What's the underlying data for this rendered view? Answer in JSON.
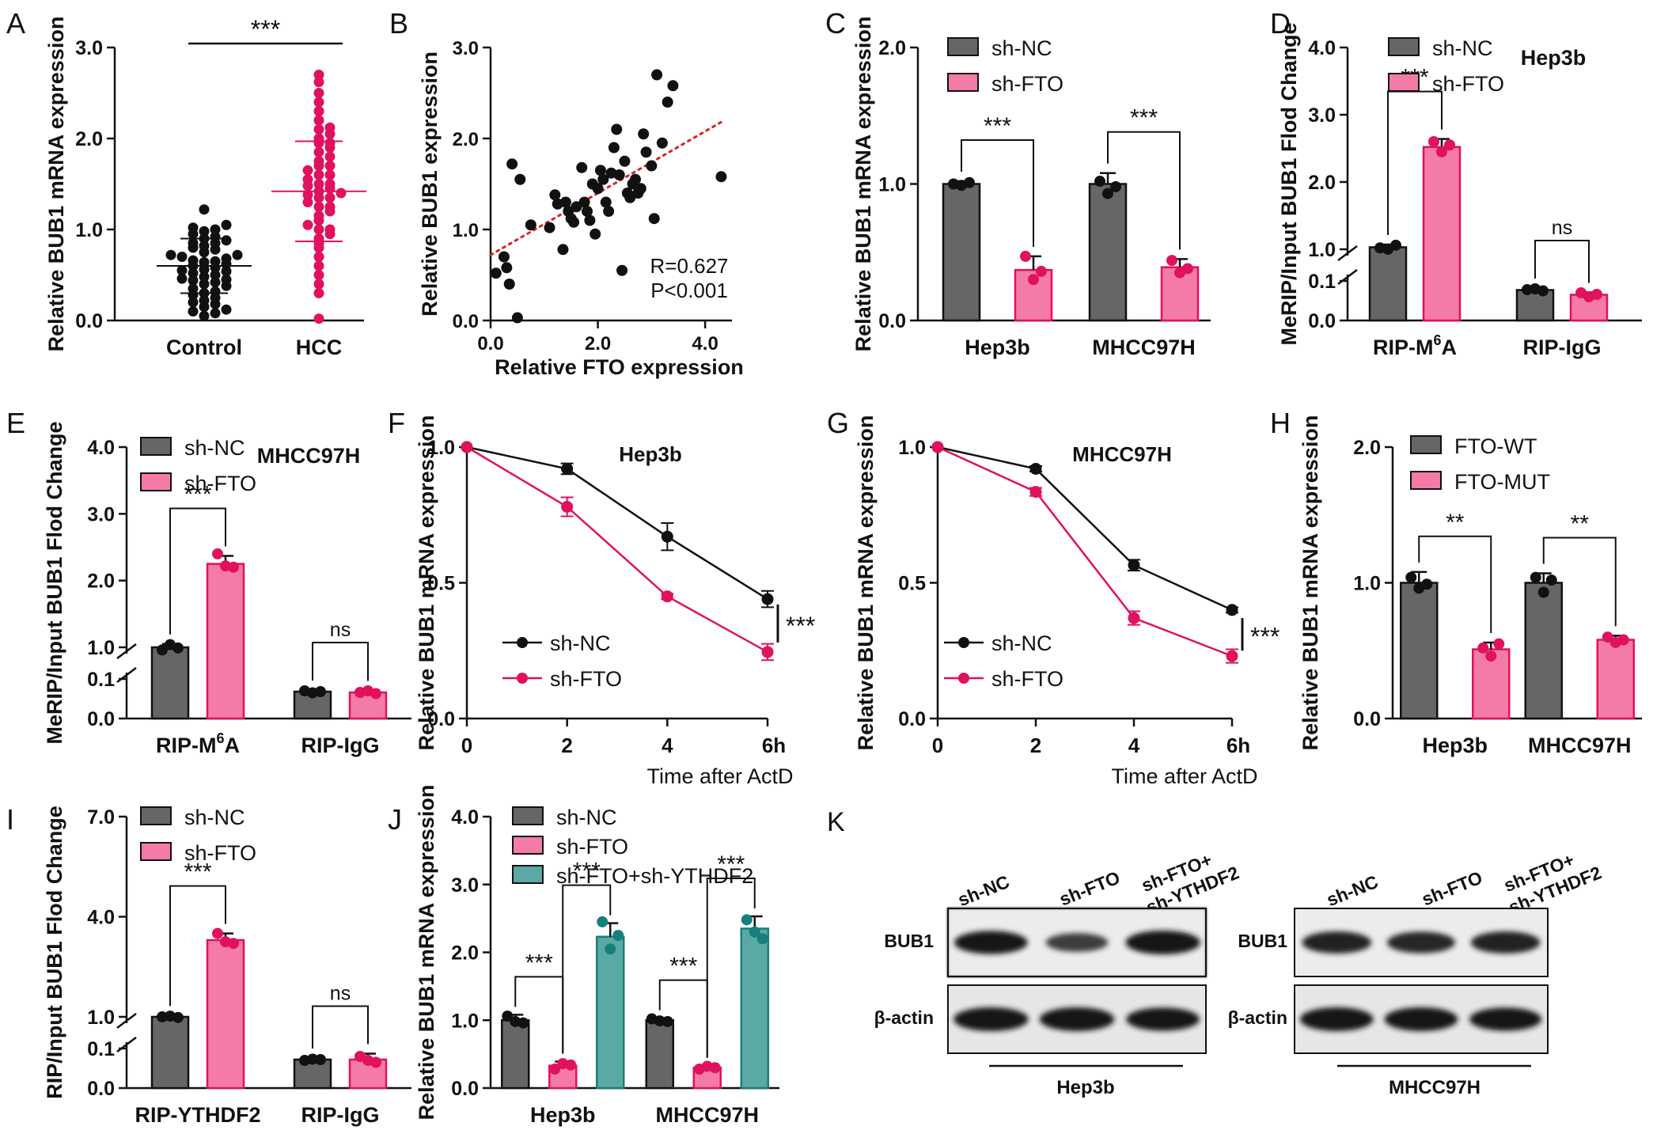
{
  "colors": {
    "gray": "#666666",
    "pink": "#f47aa8",
    "pink_dark": "#e0115f",
    "teal": "#5aa9a4",
    "teal_dark": "#177f7b",
    "black": "#111111"
  },
  "chart_data": [
    {
      "id": "A",
      "type": "scatter",
      "panel_label": "A",
      "ylabel": "Relative BUB1 mRNA expression",
      "ylim": [
        0,
        3.0
      ],
      "yticks": [
        0,
        1.0,
        2.0,
        3.0
      ],
      "ytick_labels": [
        "0.0",
        "1.0",
        "2.0",
        "3.0"
      ],
      "categories": [
        "Control",
        "HCC"
      ],
      "groups": [
        {
          "name": "Control",
          "color": "black",
          "mean": 0.6,
          "sd": 0.3,
          "values": [
            1.22,
            1.05,
            1.02,
            1.0,
            0.98,
            0.95,
            0.92,
            0.9,
            0.88,
            0.85,
            0.82,
            0.8,
            0.78,
            0.75,
            0.72,
            0.7,
            0.68,
            0.66,
            0.64,
            0.62,
            0.6,
            0.58,
            0.56,
            0.54,
            0.52,
            0.5,
            0.48,
            0.46,
            0.44,
            0.42,
            0.4,
            0.38,
            0.35,
            0.32,
            0.3,
            0.28,
            0.25,
            0.22,
            0.2,
            0.18,
            0.15,
            0.12,
            0.1,
            0.08,
            0.05,
            0.65,
            0.72,
            0.55,
            0.45,
            0.85
          ]
        },
        {
          "name": "HCC",
          "color": "pink_dark",
          "mean": 1.42,
          "sd": 0.55,
          "values": [
            2.7,
            2.62,
            2.5,
            2.4,
            2.3,
            2.2,
            2.12,
            2.05,
            2.0,
            1.95,
            1.9,
            1.85,
            1.8,
            1.75,
            1.7,
            1.65,
            1.6,
            1.55,
            1.5,
            1.48,
            1.45,
            1.42,
            1.4,
            1.38,
            1.35,
            1.3,
            1.25,
            1.2,
            1.15,
            1.1,
            1.05,
            1.0,
            0.95,
            0.9,
            0.85,
            0.8,
            0.7,
            0.6,
            0.5,
            0.4,
            0.3,
            0.02,
            1.6,
            1.7,
            1.5,
            1.25,
            1.35,
            1.0,
            1.95,
            2.1
          ]
        }
      ],
      "sig": [
        {
          "from": 0,
          "to": 1,
          "label": "***"
        }
      ]
    },
    {
      "id": "B",
      "type": "scatter",
      "panel_label": "B",
      "xlabel": "Relative FTO expression",
      "ylabel": "Relative BUB1 expression",
      "xlim": [
        0,
        4.5
      ],
      "ylim": [
        0,
        3.0
      ],
      "xticks": [
        0,
        2.0,
        4.0
      ],
      "xtick_labels": [
        "0.0",
        "2.0",
        "4.0"
      ],
      "yticks": [
        0,
        1.0,
        2.0,
        3.0
      ],
      "ytick_labels": [
        "0.0",
        "1.0",
        "2.0",
        "3.0"
      ],
      "points": [
        [
          0.1,
          0.52
        ],
        [
          0.25,
          0.7
        ],
        [
          0.3,
          0.58
        ],
        [
          0.35,
          0.4
        ],
        [
          0.5,
          0.03
        ],
        [
          0.4,
          1.72
        ],
        [
          0.55,
          1.55
        ],
        [
          0.75,
          1.05
        ],
        [
          1.1,
          1.02
        ],
        [
          1.2,
          1.38
        ],
        [
          1.25,
          1.28
        ],
        [
          1.4,
          1.3
        ],
        [
          1.45,
          1.2
        ],
        [
          1.5,
          1.12
        ],
        [
          1.55,
          1.08
        ],
        [
          1.6,
          1.25
        ],
        [
          1.7,
          1.68
        ],
        [
          1.75,
          1.3
        ],
        [
          1.8,
          1.2
        ],
        [
          1.85,
          1.1
        ],
        [
          1.9,
          1.5
        ],
        [
          1.95,
          0.95
        ],
        [
          2.0,
          1.45
        ],
        [
          2.05,
          1.65
        ],
        [
          2.1,
          1.55
        ],
        [
          2.15,
          1.3
        ],
        [
          2.2,
          1.2
        ],
        [
          2.25,
          1.62
        ],
        [
          2.3,
          1.9
        ],
        [
          2.35,
          2.1
        ],
        [
          2.4,
          1.6
        ],
        [
          2.45,
          0.55
        ],
        [
          2.5,
          1.75
        ],
        [
          2.55,
          1.4
        ],
        [
          2.6,
          1.35
        ],
        [
          2.65,
          1.5
        ],
        [
          2.7,
          1.55
        ],
        [
          2.75,
          1.4
        ],
        [
          2.8,
          1.45
        ],
        [
          2.85,
          2.05
        ],
        [
          2.9,
          1.85
        ],
        [
          3.0,
          1.7
        ],
        [
          3.05,
          1.12
        ],
        [
          3.1,
          2.7
        ],
        [
          3.3,
          2.4
        ],
        [
          3.4,
          2.58
        ],
        [
          3.2,
          1.95
        ],
        [
          1.35,
          0.78
        ],
        [
          4.3,
          1.58
        ]
      ],
      "trend": {
        "x": [
          0,
          4.3
        ],
        "y": [
          0.72,
          2.18
        ]
      },
      "annotations": [
        "R=0.627",
        "P<0.001"
      ]
    },
    {
      "id": "C",
      "type": "bar",
      "panel_label": "C",
      "ylabel": "Relative BUB1 mRNA expression",
      "ylim": [
        0,
        2.0
      ],
      "yticks": [
        0,
        1.0,
        2.0
      ],
      "ytick_labels": [
        "0.0",
        "1.0",
        "2.0"
      ],
      "categories": [
        "Hep3b",
        "MHCC97H"
      ],
      "series": [
        {
          "name": "sh-NC",
          "color": "gray",
          "values": [
            1.0,
            1.0
          ],
          "errors": [
            0.02,
            0.08
          ],
          "points": [
            [
              1.0,
              0.99,
              1.01
            ],
            [
              1.02,
              0.93,
              0.98
            ]
          ]
        },
        {
          "name": "sh-FTO",
          "color": "pink",
          "values": [
            0.37,
            0.39
          ],
          "errors": [
            0.1,
            0.06
          ],
          "points": [
            [
              0.47,
              0.3,
              0.36
            ],
            [
              0.44,
              0.35,
              0.38
            ]
          ]
        }
      ],
      "sig": [
        {
          "cat": 0,
          "label": "***"
        },
        {
          "cat": 1,
          "label": "***"
        }
      ]
    },
    {
      "id": "D",
      "type": "bar",
      "panel_label": "D",
      "title": "Hep3b",
      "ylabel": "MeRIP/Input BUB1 Flod Change",
      "broken_axis": {
        "low": [
          0,
          0.1
        ],
        "high": [
          1.0,
          4.0
        ]
      },
      "ytick_labels": [
        "0.0",
        "0.1",
        "1.0",
        "2.0",
        "3.0",
        "4.0"
      ],
      "categories": [
        "RIP-M6A",
        "RIP-IgG"
      ],
      "series": [
        {
          "name": "sh-NC",
          "color": "gray",
          "values": [
            1.03,
            0.077
          ],
          "errors": [
            0.04,
            0.005
          ],
          "points": [
            [
              1.02,
              1.0,
              1.06
            ],
            [
              0.078,
              0.08,
              0.075
            ]
          ]
        },
        {
          "name": "sh-FTO",
          "color": "pink",
          "values": [
            2.52,
            0.065
          ],
          "errors": [
            0.12,
            0.006
          ],
          "points": [
            [
              2.6,
              2.45,
              2.55
            ],
            [
              0.07,
              0.06,
              0.066
            ]
          ]
        }
      ],
      "sig": [
        {
          "cat": 0,
          "label": "***"
        },
        {
          "cat": 1,
          "label": "ns"
        }
      ]
    },
    {
      "id": "E",
      "type": "bar",
      "panel_label": "E",
      "title": "MHCC97H",
      "ylabel": "MeRIP/Input BUB1 Flod Change",
      "broken_axis": {
        "low": [
          0,
          0.1
        ],
        "high": [
          1.0,
          4.0
        ]
      },
      "ytick_labels": [
        "0.0",
        "0.1",
        "1.0",
        "2.0",
        "3.0",
        "4.0"
      ],
      "categories": [
        "RIP-M6A",
        "RIP-IgG"
      ],
      "series": [
        {
          "name": "sh-NC",
          "color": "gray",
          "values": [
            1.0,
            0.068
          ],
          "errors": [
            0.05,
            0.004
          ],
          "points": [
            [
              0.96,
              1.04,
              0.99
            ],
            [
              0.07,
              0.065,
              0.068
            ]
          ]
        },
        {
          "name": "sh-FTO",
          "color": "pink",
          "values": [
            2.25,
            0.066
          ],
          "errors": [
            0.12,
            0.005
          ],
          "points": [
            [
              2.4,
              2.22,
              2.2
            ],
            [
              0.066,
              0.07,
              0.063
            ]
          ]
        }
      ],
      "sig": [
        {
          "cat": 0,
          "label": "***"
        },
        {
          "cat": 1,
          "label": "ns"
        }
      ]
    },
    {
      "id": "F",
      "type": "line",
      "panel_label": "F",
      "title": "Hep3b",
      "xlabel": "Time after ActD",
      "ylabel": "Relative BUB1 mRNA expression",
      "xlim": [
        0,
        6
      ],
      "ylim": [
        0,
        1.0
      ],
      "xticks": [
        0,
        2,
        4,
        6
      ],
      "xtick_labels": [
        "0",
        "2",
        "4",
        "6h"
      ],
      "yticks": [
        0,
        0.5,
        1.0
      ],
      "ytick_labels": [
        "0.0",
        "0.5",
        "1.0"
      ],
      "series": [
        {
          "name": "sh-NC",
          "color": "black",
          "x": [
            0,
            2,
            4,
            6
          ],
          "y": [
            1.0,
            0.92,
            0.67,
            0.44
          ],
          "errors": [
            0,
            0.02,
            0.05,
            0.03
          ]
        },
        {
          "name": "sh-FTO",
          "color": "pink_dark",
          "x": [
            0,
            2,
            4,
            6
          ],
          "y": [
            1.0,
            0.78,
            0.45,
            0.245
          ],
          "errors": [
            0,
            0.035,
            0.01,
            0.03
          ]
        }
      ],
      "sig": {
        "label": "***",
        "range": [
          0.28,
          0.42
        ]
      }
    },
    {
      "id": "G",
      "type": "line",
      "panel_label": "G",
      "title": "MHCC97H",
      "xlabel": "Time after ActD",
      "ylabel": "Relative BUB1 mRNA expression",
      "xlim": [
        0,
        6
      ],
      "ylim": [
        0,
        1.0
      ],
      "xticks": [
        0,
        2,
        4,
        6
      ],
      "xtick_labels": [
        "0",
        "2",
        "4",
        "6h"
      ],
      "yticks": [
        0,
        0.5,
        1.0
      ],
      "ytick_labels": [
        "0.0",
        "0.5",
        "1.0"
      ],
      "series": [
        {
          "name": "sh-NC",
          "color": "black",
          "x": [
            0,
            2,
            4,
            6
          ],
          "y": [
            1.0,
            0.92,
            0.565,
            0.4
          ],
          "errors": [
            0,
            0.01,
            0.02,
            0.01
          ]
        },
        {
          "name": "sh-FTO",
          "color": "pink_dark",
          "x": [
            0,
            2,
            4,
            6
          ],
          "y": [
            1.0,
            0.835,
            0.37,
            0.23
          ],
          "errors": [
            0,
            0.015,
            0.025,
            0.025
          ]
        }
      ],
      "sig": {
        "label": "***",
        "range": [
          0.25,
          0.37
        ]
      }
    },
    {
      "id": "H",
      "type": "bar",
      "panel_label": "H",
      "ylabel": "Relative BUB1 mRNA expression",
      "ylim": [
        0,
        2.0
      ],
      "yticks": [
        0,
        1.0,
        2.0
      ],
      "ytick_labels": [
        "0.0",
        "1.0",
        "2.0"
      ],
      "categories": [
        "Hep3b",
        "MHCC97H"
      ],
      "series": [
        {
          "name": "FTO-WT",
          "color": "gray",
          "values": [
            1.0,
            1.0
          ],
          "errors": [
            0.08,
            0.07
          ],
          "points": [
            [
              1.04,
              0.96,
              0.99
            ],
            [
              1.04,
              0.93,
              1.02
            ]
          ]
        },
        {
          "name": "FTO-MUT",
          "color": "pink",
          "values": [
            0.51,
            0.58
          ],
          "errors": [
            0.05,
            0.03
          ],
          "points": [
            [
              0.52,
              0.46,
              0.55
            ],
            [
              0.6,
              0.56,
              0.58
            ]
          ]
        }
      ],
      "sig": [
        {
          "cat": 0,
          "label": "**"
        },
        {
          "cat": 1,
          "label": "**"
        }
      ]
    },
    {
      "id": "I",
      "type": "bar",
      "panel_label": "I",
      "ylabel": "RIP/Input BUB1 Flod Change",
      "broken_axis": {
        "low": [
          0,
          0.1
        ],
        "high": [
          1.0,
          7.0
        ]
      },
      "ytick_labels": [
        "0.0",
        "0.1",
        "1.0",
        "4.0",
        "7.0"
      ],
      "high_ticks": [
        1.0,
        4.0,
        7.0
      ],
      "categories": [
        "RIP-YTHDF2",
        "RIP-IgG"
      ],
      "series": [
        {
          "name": "sh-NC",
          "color": "gray",
          "values": [
            1.0,
            0.072
          ],
          "errors": [
            0.04,
            0.004
          ],
          "points": [
            [
              1.0,
              1.02,
              0.98
            ],
            [
              0.07,
              0.073,
              0.072
            ]
          ]
        },
        {
          "name": "sh-FTO",
          "color": "pink",
          "values": [
            3.3,
            0.072
          ],
          "errors": [
            0.2,
            0.015
          ],
          "points": [
            [
              3.5,
              3.25,
              3.2
            ],
            [
              0.08,
              0.07,
              0.065
            ]
          ]
        }
      ],
      "sig": [
        {
          "cat": 0,
          "label": "***"
        },
        {
          "cat": 1,
          "label": "ns"
        }
      ]
    },
    {
      "id": "J",
      "type": "bar",
      "panel_label": "J",
      "ylabel": "Relative BUB1 mRNA expression",
      "ylim": [
        0,
        4.0
      ],
      "yticks": [
        0,
        1.0,
        2.0,
        3.0,
        4.0
      ],
      "ytick_labels": [
        "0.0",
        "1.0",
        "2.0",
        "3.0",
        "4.0"
      ],
      "categories": [
        "Hep3b",
        "MHCC97H"
      ],
      "series": [
        {
          "name": "sh-NC",
          "color": "gray",
          "values": [
            1.0,
            1.0
          ],
          "errors": [
            0.08,
            0.03
          ],
          "points": [
            [
              1.06,
              0.98,
              0.96
            ],
            [
              1.02,
              0.99,
              0.98
            ]
          ]
        },
        {
          "name": "sh-FTO",
          "color": "pink",
          "values": [
            0.33,
            0.3
          ],
          "errors": [
            0.06,
            0.03
          ],
          "points": [
            [
              0.28,
              0.36,
              0.34
            ],
            [
              0.28,
              0.32,
              0.3
            ]
          ]
        },
        {
          "name": "sh-FTO+sh-YTHDF2",
          "color": "teal",
          "values": [
            2.23,
            2.35
          ],
          "errors": [
            0.2,
            0.18
          ],
          "points": [
            [
              2.45,
              2.05,
              2.25
            ],
            [
              2.48,
              2.3,
              2.2
            ]
          ]
        }
      ],
      "sig_pairs": [
        {
          "cat": 0,
          "from": 0,
          "to": 1,
          "label": "***"
        },
        {
          "cat": 0,
          "from": 1,
          "to": 2,
          "label": "***"
        },
        {
          "cat": 1,
          "from": 0,
          "to": 1,
          "label": "***"
        },
        {
          "cat": 1,
          "from": 1,
          "to": 2,
          "label": "***"
        }
      ]
    }
  ],
  "panel_k": {
    "panel_label": "K",
    "blots": [
      {
        "cell_line": "Hep3b",
        "lanes": [
          "sh-NC",
          "sh-FTO",
          "sh-FTO+",
          "sh-YTHDF2"
        ],
        "rows": [
          "BUB1",
          "β-actin"
        ],
        "bub1_intensity": [
          0.95,
          0.55,
          1.0
        ],
        "actin_intensity": [
          1.0,
          1.0,
          0.95
        ]
      },
      {
        "cell_line": "MHCC97H",
        "lanes": [
          "sh-NC",
          "sh-FTO",
          "sh-FTO+",
          "sh-YTHDF2"
        ],
        "rows": [
          "BUB1",
          "β-actin"
        ],
        "bub1_intensity": [
          0.85,
          0.8,
          0.85
        ],
        "actin_intensity": [
          1.0,
          1.0,
          0.95
        ]
      }
    ]
  }
}
